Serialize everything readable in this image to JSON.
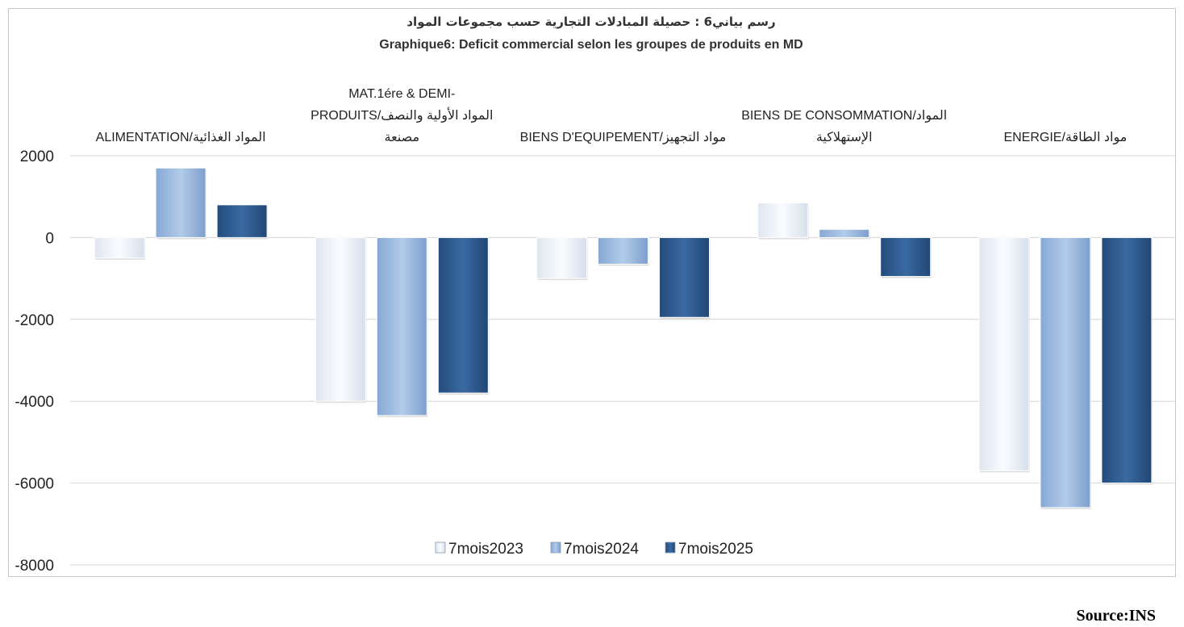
{
  "chart_data": {
    "type": "bar",
    "title_ar": "رسم بياني6 : حصيلة المبادلات التجارية حسب مجموعات المواد",
    "title": "Graphique6: Deficit commercial selon les groupes de produits en MD",
    "categories": [
      [
        "ALIMENTATION/المواد الغذائية"
      ],
      [
        "MAT.1ére & DEMI-",
        "PRODUITS/المواد الأولية والنصف",
        "مصنعة"
      ],
      [
        "BIENS D'EQUIPEMENT/مواد التجهيز"
      ],
      [
        "BIENS DE CONSOMMATION/المواد",
        "الإستهلاكية"
      ],
      [
        "ENERGIE/مواد الطاقة"
      ]
    ],
    "series": [
      {
        "name": "7mois2023",
        "values": [
          -500,
          -4000,
          -1000,
          850,
          -5700
        ],
        "color": "#eef2f8"
      },
      {
        "name": "7mois2024",
        "values": [
          1700,
          -4350,
          -650,
          200,
          -6600
        ],
        "color": "#9dbbe0"
      },
      {
        "name": "7mois2025",
        "values": [
          800,
          -3800,
          -1950,
          -950,
          -6000
        ],
        "color": "#2e5b90"
      }
    ],
    "ylim": [
      -8000,
      2000
    ],
    "yticks": [
      2000,
      0,
      -2000,
      -4000,
      -6000,
      -8000
    ],
    "grid": true,
    "legend_position": "bottom-center",
    "source": "Source:INS"
  }
}
